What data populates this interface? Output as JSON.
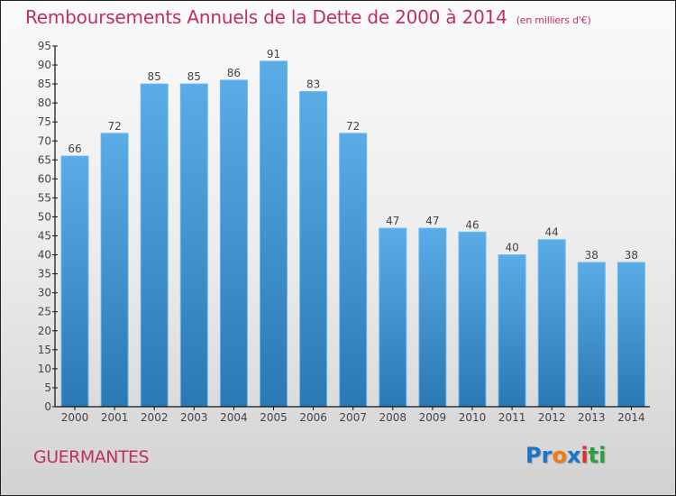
{
  "chart_data": {
    "type": "bar",
    "title": "Remboursements Annuels de la Dette de 2000 à 2014",
    "subtitle": "(en milliers d'€)",
    "xlabel": "",
    "ylabel": "",
    "categories": [
      "2000",
      "2001",
      "2002",
      "2003",
      "2004",
      "2005",
      "2006",
      "2007",
      "2008",
      "2009",
      "2010",
      "2011",
      "2012",
      "2013",
      "2014"
    ],
    "values": [
      66,
      72,
      85,
      85,
      86,
      91,
      83,
      72,
      47,
      47,
      46,
      40,
      44,
      38,
      38
    ],
    "ylim": [
      0,
      95
    ],
    "yticks": [
      0,
      5,
      10,
      15,
      20,
      25,
      30,
      35,
      40,
      45,
      50,
      55,
      60,
      65,
      70,
      75,
      80,
      85,
      90,
      95
    ],
    "grid": false,
    "legend": "none",
    "data_labels": true,
    "bar_color_top": "#5aace6",
    "bar_color_bottom": "#2a78b4"
  },
  "footer": {
    "commune": "GUERMANTES",
    "logo": [
      {
        "text": "Pr",
        "color": "#1a74c8"
      },
      {
        "text": "o",
        "color": "#f07c10"
      },
      {
        "text": "x",
        "color": "#1a74c8"
      },
      {
        "text": "i",
        "color": "#e0302a"
      },
      {
        "text": "t",
        "color": "#2aa040"
      },
      {
        "text": "i",
        "color": "#2aa040"
      }
    ]
  },
  "colors": {
    "title": "#c0305e",
    "axis": "#111111"
  }
}
